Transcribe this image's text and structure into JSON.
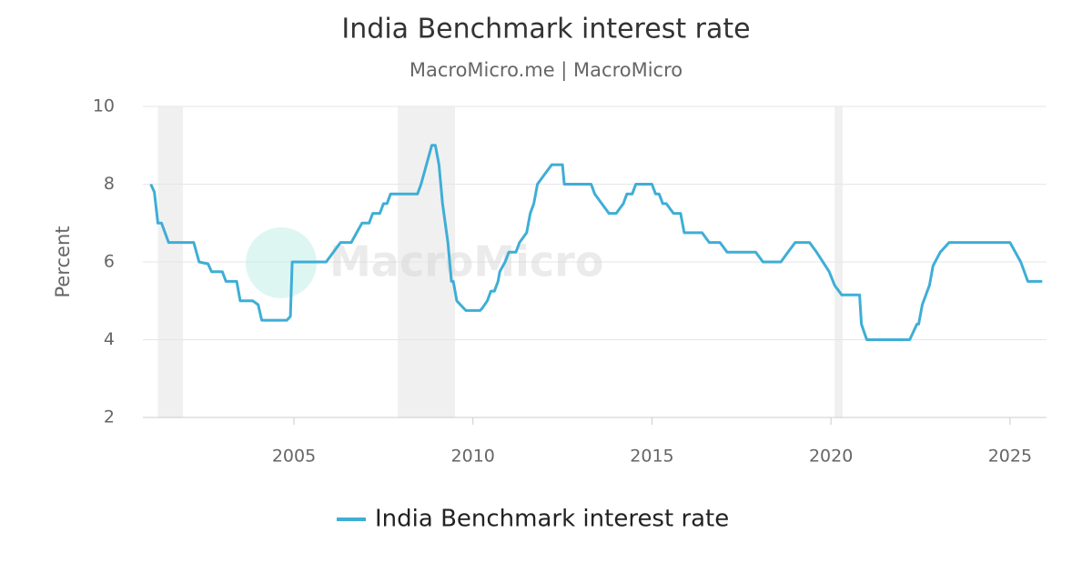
{
  "chart_data": {
    "type": "line",
    "title": "India Benchmark interest rate",
    "subtitle": "MacroMicro.me | MacroMicro",
    "y_label": "Percent",
    "watermark": "MacroMicro",
    "xlim": [
      2000.78,
      2026.02
    ],
    "ylim": [
      2,
      10
    ],
    "xticks": [
      2005,
      2010,
      2015,
      2020,
      2025
    ],
    "yticks": [
      2,
      4,
      6,
      8,
      10
    ],
    "grid": true,
    "legend": "bottom",
    "shaded_periods": [
      [
        2001.2,
        2001.9
      ],
      [
        2007.9,
        2009.5
      ],
      [
        2020.1,
        2020.33
      ]
    ],
    "x": [
      2001.0,
      2001.1,
      2001.2,
      2001.3,
      2001.5,
      2002.2,
      2002.35,
      2002.6,
      2002.7,
      2003.0,
      2003.1,
      2003.4,
      2003.5,
      2003.85,
      2004.0,
      2004.1,
      2004.8,
      2004.9,
      2004.95,
      2005.9,
      2006.1,
      2006.3,
      2006.6,
      2006.75,
      2006.9,
      2007.1,
      2007.2,
      2007.4,
      2007.5,
      2007.6,
      2007.7,
      2008.45,
      2008.55,
      2008.7,
      2008.85,
      2008.95,
      2009.05,
      2009.15,
      2009.3,
      2009.4,
      2009.45,
      2009.55,
      2009.8,
      2010.2,
      2010.25,
      2010.4,
      2010.5,
      2010.6,
      2010.7,
      2010.75,
      2010.9,
      2011.0,
      2011.2,
      2011.3,
      2011.5,
      2011.6,
      2011.7,
      2011.8,
      2012.0,
      2012.2,
      2012.5,
      2012.55,
      2013.3,
      2013.4,
      2013.8,
      2014.0,
      2014.2,
      2014.3,
      2014.45,
      2014.55,
      2015.0,
      2015.1,
      2015.2,
      2015.3,
      2015.4,
      2015.6,
      2015.8,
      2015.9,
      2016.4,
      2016.6,
      2016.9,
      2017.1,
      2017.9,
      2018.1,
      2018.6,
      2018.8,
      2019.0,
      2019.4,
      2019.6,
      2019.95,
      2020.1,
      2020.3,
      2020.8,
      2020.85,
      2021.0,
      2022.2,
      2022.4,
      2022.45,
      2022.55,
      2022.75,
      2022.85,
      2023.05,
      2023.3,
      2025.0,
      2025.3,
      2025.5,
      2025.9
    ],
    "series": [
      {
        "name": "India Benchmark interest rate",
        "color": "#3eaed6",
        "values": [
          8.0,
          7.8,
          7.0,
          7.0,
          6.5,
          6.5,
          6.0,
          5.95,
          5.75,
          5.75,
          5.5,
          5.5,
          5.0,
          5.0,
          4.9,
          4.5,
          4.5,
          4.6,
          6.0,
          6.0,
          6.25,
          6.5,
          6.5,
          6.75,
          7.0,
          7.0,
          7.25,
          7.25,
          7.5,
          7.5,
          7.75,
          7.75,
          8.0,
          8.5,
          9.0,
          9.0,
          8.5,
          7.5,
          6.5,
          5.5,
          5.5,
          5.0,
          4.75,
          4.75,
          4.8,
          5.0,
          5.25,
          5.25,
          5.5,
          5.75,
          6.0,
          6.25,
          6.25,
          6.5,
          6.75,
          7.25,
          7.5,
          8.0,
          8.25,
          8.5,
          8.5,
          8.0,
          8.0,
          7.75,
          7.25,
          7.25,
          7.5,
          7.75,
          7.75,
          8.0,
          8.0,
          7.75,
          7.75,
          7.5,
          7.5,
          7.25,
          7.25,
          6.75,
          6.75,
          6.5,
          6.5,
          6.25,
          6.25,
          6.0,
          6.0,
          6.25,
          6.5,
          6.5,
          6.25,
          5.75,
          5.4,
          5.15,
          5.15,
          4.4,
          4.0,
          4.0,
          4.4,
          4.4,
          4.9,
          5.4,
          5.9,
          6.25,
          6.5,
          6.5,
          6.0,
          5.5,
          5.5
        ]
      }
    ]
  }
}
